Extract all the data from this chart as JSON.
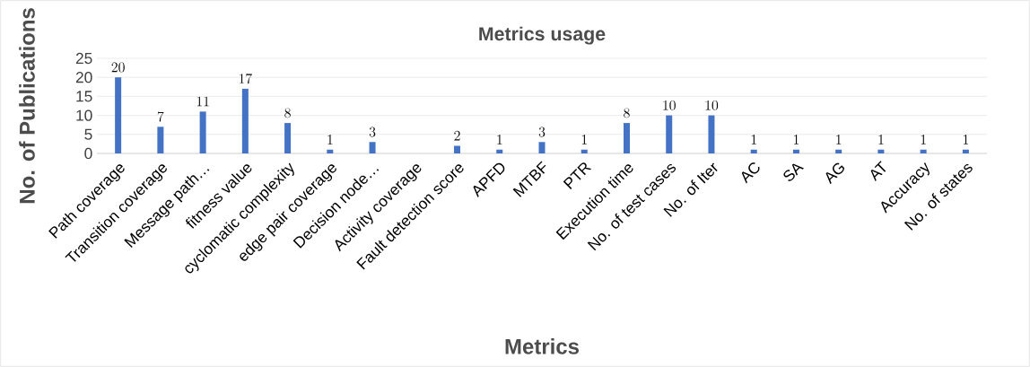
{
  "chart_data": {
    "type": "bar",
    "title": "Metrics usage",
    "xlabel": "Metrics",
    "ylabel": "No. of Publications",
    "categories": [
      "Path coverage",
      "Transition coverage",
      "Message path…",
      "fitness value",
      "cyclomatic complexity",
      "edge pair coverage",
      "Decision node…",
      "Activity coverage",
      "Fault detection score",
      "APFD",
      "MTBF",
      "PTR",
      "Execution time",
      "No. of test cases",
      "No. of Iter",
      "AC",
      "SA",
      "AG",
      "AT",
      "Accuracy",
      "No. of states"
    ],
    "values": [
      20,
      7,
      11,
      17,
      8,
      1,
      3,
      null,
      2,
      1,
      3,
      1,
      8,
      10,
      10,
      1,
      1,
      1,
      1,
      1,
      1
    ],
    "color": "#4472c4",
    "ylim": [
      0,
      25
    ],
    "yticks": [
      0,
      5,
      10,
      15,
      20,
      25
    ],
    "grid": "y",
    "data_labels": true
  }
}
